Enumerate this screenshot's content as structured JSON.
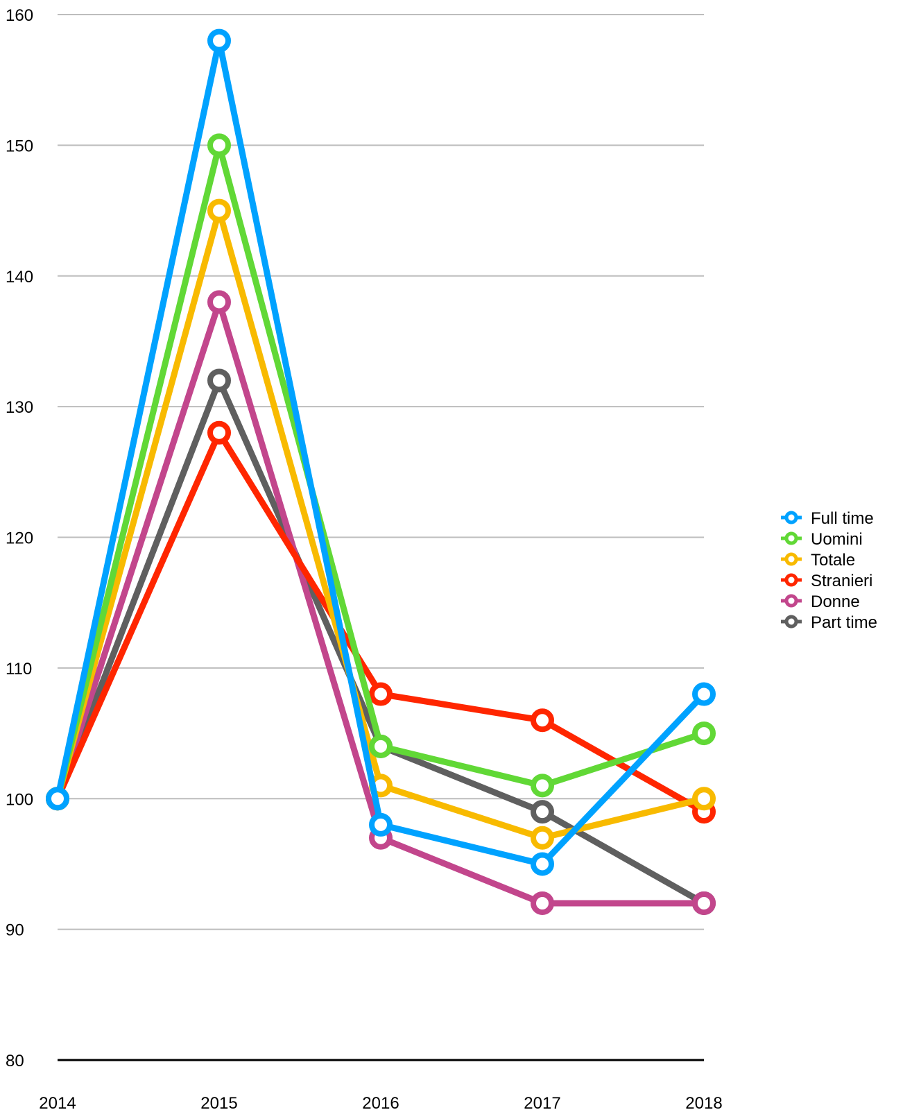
{
  "chart_data": {
    "type": "line",
    "title": "",
    "xlabel": "",
    "ylabel": "",
    "x": [
      "2014",
      "2015",
      "2016",
      "2017",
      "2018"
    ],
    "ylim": [
      80,
      160
    ],
    "yticks": [
      "80",
      "90",
      "100",
      "110",
      "120",
      "130",
      "140",
      "150",
      "160"
    ],
    "grid": true,
    "legend_position": "right",
    "series": [
      {
        "name": "Part time",
        "color": "#5f5f5f",
        "values": [
          100,
          132,
          104,
          99,
          92
        ]
      },
      {
        "name": "Donne",
        "color": "#c2468c",
        "values": [
          100,
          138,
          97,
          92,
          92
        ]
      },
      {
        "name": "Stranieri",
        "color": "#ff2600",
        "values": [
          100,
          128,
          108,
          106,
          99
        ]
      },
      {
        "name": "Totale",
        "color": "#f8ba00",
        "values": [
          100,
          145,
          101,
          97,
          100
        ]
      },
      {
        "name": "Uomini",
        "color": "#61d836",
        "values": [
          100,
          150,
          104,
          101,
          105
        ]
      },
      {
        "name": "Full time",
        "color": "#00a2ff",
        "values": [
          100,
          158,
          98,
          95,
          108
        ]
      }
    ],
    "legend_order": [
      "Full time",
      "Uomini",
      "Totale",
      "Stranieri",
      "Donne",
      "Part time"
    ]
  }
}
